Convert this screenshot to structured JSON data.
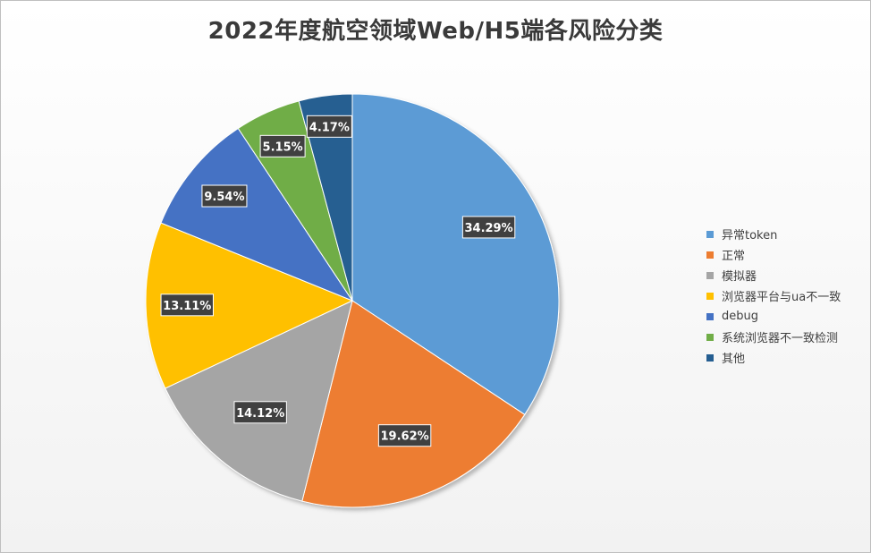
{
  "chart_data": {
    "type": "pie",
    "title": "2022年度航空领域Web/H5端各风险分类",
    "categories": [
      "异常token",
      "正常",
      "模拟器",
      "浏览器平台与ua不一致",
      "debug",
      "系统浏览器不一致检测",
      "其他"
    ],
    "values": [
      34.29,
      19.62,
      14.12,
      13.11,
      9.54,
      5.15,
      4.17
    ],
    "value_labels": [
      "34.29%",
      "19.62%",
      "14.12%",
      "13.11%",
      "9.54%",
      "5.15%",
      "4.17%"
    ],
    "colors": [
      "#5b9bd5",
      "#ed7d31",
      "#a5a5a5",
      "#ffc000",
      "#4472c4",
      "#70ad47",
      "#255e91"
    ],
    "legend_position": "right"
  }
}
